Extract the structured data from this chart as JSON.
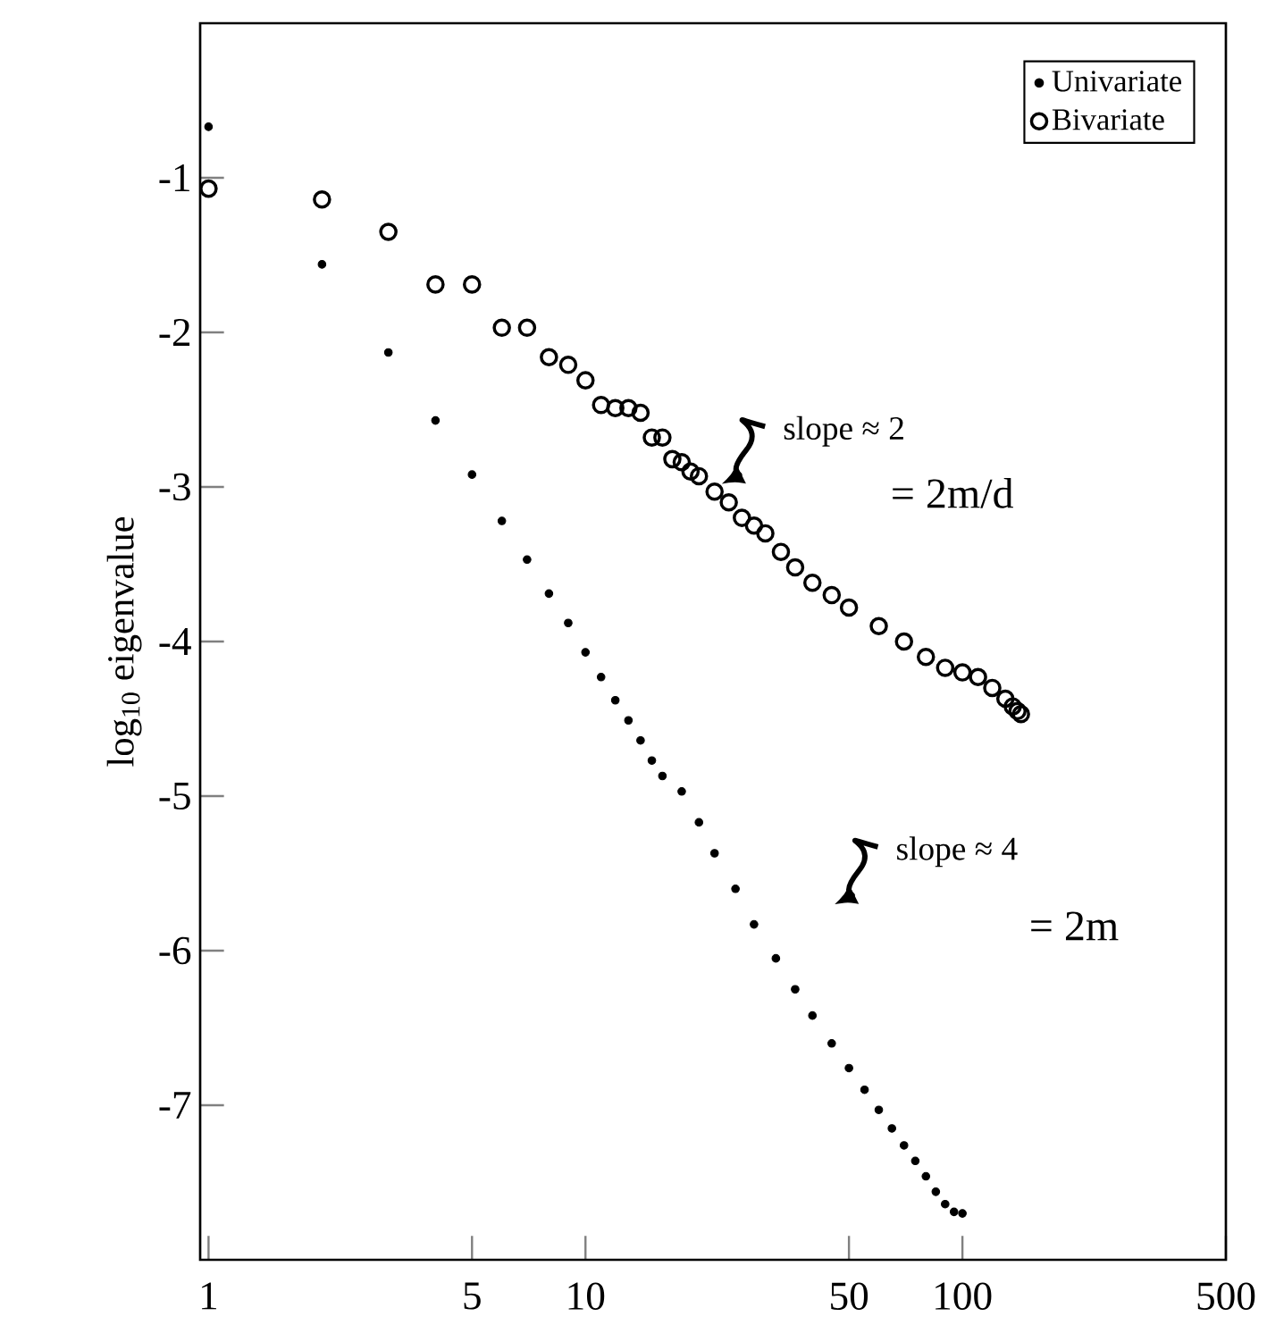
{
  "chart_data": {
    "type": "scatter",
    "ylabel": "log$_{10}$ eigenvalue",
    "x": [
      1,
      2,
      3,
      4,
      5,
      6,
      7,
      8,
      9,
      10,
      11,
      12,
      13,
      14,
      15,
      16,
      18,
      20,
      22,
      25,
      28,
      32,
      36,
      40,
      45,
      50,
      55,
      60,
      65,
      70,
      75,
      80,
      85,
      90,
      95,
      100
    ],
    "series": [
      {
        "name": "Univariate",
        "color": "#000000",
        "marker": "circle",
        "values": [
          -0.67,
          -1.56,
          -2.13,
          -2.57,
          -2.92,
          -3.22,
          -3.47,
          -3.69,
          -3.88,
          -4.07,
          -4.23,
          -4.38,
          -4.51,
          -4.64,
          -4.77,
          -4.87,
          -4.97,
          -5.17,
          -5.37,
          -5.6,
          -5.83,
          -6.05,
          -6.25,
          -6.42,
          -6.6,
          -6.76,
          -6.9,
          -7.03,
          -7.15,
          -7.26,
          -7.36,
          -7.46,
          -7.56,
          -7.64,
          -7.69,
          -7.7
        ]
      },
      {
        "name": "Bivariate",
        "color": "#000000",
        "marker": "circle",
        "x": [
          1,
          2,
          3,
          4,
          5,
          6,
          7,
          8,
          9,
          10,
          11,
          12,
          13,
          14,
          15,
          16,
          17,
          18,
          19,
          20,
          22,
          24,
          26,
          28,
          30,
          33,
          36,
          40,
          45,
          50,
          60,
          70,
          80,
          90,
          100,
          110,
          120,
          130,
          136,
          140,
          143
        ],
        "values": [
          -1.07,
          -1.14,
          -1.35,
          -1.69,
          -1.69,
          -1.97,
          -1.97,
          -2.16,
          -2.21,
          -2.31,
          -2.47,
          -2.49,
          -2.49,
          -2.52,
          -2.68,
          -2.68,
          -2.82,
          -2.84,
          -2.9,
          -2.93,
          -3.03,
          -3.1,
          -3.2,
          -3.25,
          -3.3,
          -3.42,
          -3.52,
          -3.62,
          -3.7,
          -3.78,
          -3.9,
          -4.0,
          -4.1,
          -4.17,
          -4.2,
          -4.23,
          -4.3,
          -4.37,
          -4.42,
          -4.45,
          -4.47
        ]
      }
    ],
    "log": "x",
    "xlim": [
      0.95,
      500
    ],
    "xticks": [
      1,
      5,
      10,
      50,
      100,
      500
    ],
    "ylim": [
      -8,
      0
    ],
    "yticks": [
      -7,
      -6,
      -5,
      -4,
      -3,
      -2,
      -1
    ],
    "legend": "top right",
    "grid": false,
    "annotations": [
      "slope ≈ 2",
      "= 2m/d",
      "slope ≈ 4",
      "= 2m"
    ]
  }
}
